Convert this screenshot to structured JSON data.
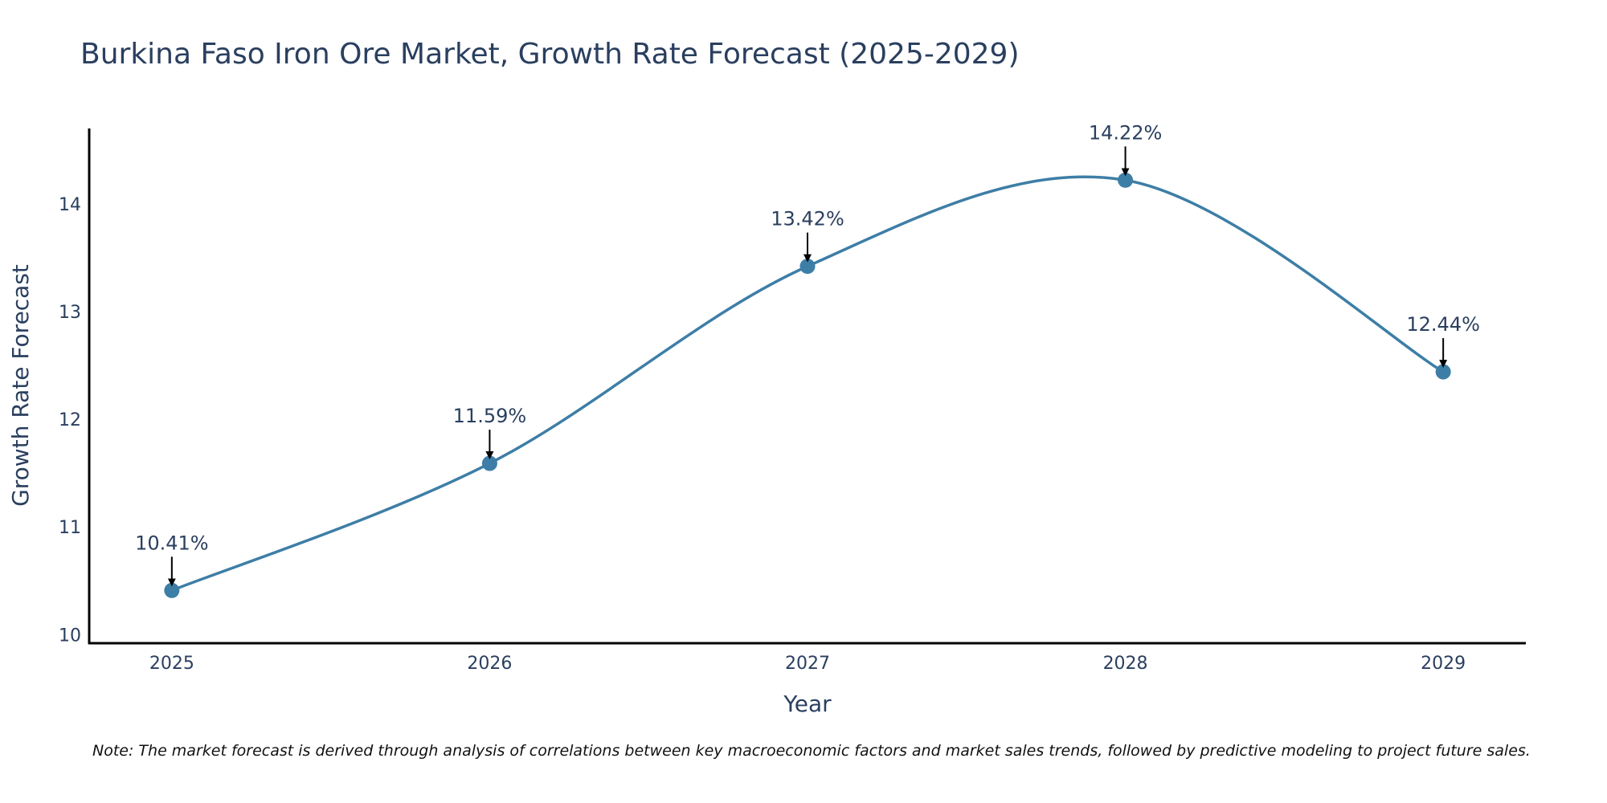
{
  "chart_data": {
    "type": "line",
    "title": "Burkina Faso Iron Ore Market, Growth Rate Forecast (2025-2029)",
    "xlabel": "Year",
    "ylabel": "Growth Rate Forecast",
    "categories": [
      "2025",
      "2026",
      "2027",
      "2028",
      "2029"
    ],
    "x": [
      2025,
      2026,
      2027,
      2028,
      2029
    ],
    "series": [
      {
        "name": "Growth Rate Forecast",
        "values": [
          10.41,
          11.59,
          13.42,
          14.22,
          12.44
        ],
        "labels": [
          "10.41%",
          "11.59%",
          "13.42%",
          "14.22%",
          "12.44%"
        ],
        "color": "#3d7ea6",
        "line_shape": "spline"
      }
    ],
    "xlim": [
      2024.74,
      2029.26
    ],
    "ylim": [
      9.92,
      14.7
    ],
    "y_ticks": [
      10,
      11,
      12,
      13,
      14
    ],
    "y_tick_labels": [
      "10",
      "11",
      "12",
      "13",
      "14"
    ],
    "grid": false,
    "legend": "none",
    "annotation_arrow_color": "#000000",
    "axis_line_color": "#000000",
    "note": "Note: The market forecast is derived through analysis of correlations between key macroeconomic factors and market sales trends, followed by predictive modeling to project future sales."
  }
}
